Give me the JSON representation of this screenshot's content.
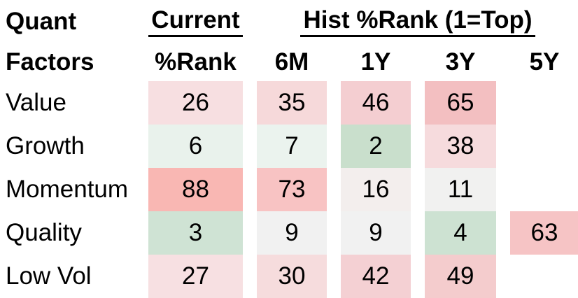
{
  "title": {
    "line1": "Quant",
    "line2": "Factors"
  },
  "header": {
    "group_current": "Current",
    "group_hist": "Hist %Rank (1=Top)",
    "col_current": "%Rank",
    "cols": [
      "6M",
      "1Y",
      "3Y",
      "5Y"
    ]
  },
  "rows": [
    {
      "label": "Value",
      "cells": [
        {
          "v": "26",
          "bg": "#f7dfe1"
        },
        {
          "v": "35",
          "bg": "#f6d9da"
        },
        {
          "v": "46",
          "bg": "#f4ced1"
        },
        {
          "v": "65",
          "bg": "#f3bfc1"
        },
        {
          "v": "",
          "bg": ""
        }
      ]
    },
    {
      "label": "Growth",
      "cells": [
        {
          "v": "6",
          "bg": "#e9f2ec"
        },
        {
          "v": "7",
          "bg": "#ebf3ee"
        },
        {
          "v": "2",
          "bg": "#c9dfcc"
        },
        {
          "v": "38",
          "bg": "#f6dbdd"
        },
        {
          "v": "",
          "bg": ""
        }
      ]
    },
    {
      "label": "Momentum",
      "cells": [
        {
          "v": "88",
          "bg": "#f9b7b3"
        },
        {
          "v": "73",
          "bg": "#f8c3c3"
        },
        {
          "v": "16",
          "bg": "#f3eeed"
        },
        {
          "v": "11",
          "bg": "#f1f1f0"
        },
        {
          "v": "",
          "bg": ""
        }
      ]
    },
    {
      "label": "Quality",
      "cells": [
        {
          "v": "3",
          "bg": "#cfe3d4"
        },
        {
          "v": "9",
          "bg": "#f1f1f1"
        },
        {
          "v": "9",
          "bg": "#f1f1f1"
        },
        {
          "v": "4",
          "bg": "#cde2d2"
        },
        {
          "v": "63",
          "bg": "#f6c4c5"
        }
      ]
    },
    {
      "label": "Low Vol",
      "cells": [
        {
          "v": "27",
          "bg": "#f7e0e2"
        },
        {
          "v": "30",
          "bg": "#f6dcdd"
        },
        {
          "v": "42",
          "bg": "#f4d0d3"
        },
        {
          "v": "49",
          "bg": "#f4cccd"
        },
        {
          "v": "",
          "bg": ""
        }
      ]
    }
  ],
  "chart_data": {
    "type": "heatmap",
    "title": "Quant Factors %Rank",
    "scale_note": "1=Top",
    "row_labels": [
      "Value",
      "Growth",
      "Momentum",
      "Quality",
      "Low Vol"
    ],
    "column_groups": [
      {
        "label": "Current",
        "columns": [
          "%Rank"
        ]
      },
      {
        "label": "Hist %Rank (1=Top)",
        "columns": [
          "6M",
          "1Y",
          "3Y",
          "5Y"
        ]
      }
    ],
    "columns": [
      "Current %Rank",
      "6M",
      "1Y",
      "3Y",
      "5Y"
    ],
    "values": [
      [
        26,
        35,
        46,
        65,
        null
      ],
      [
        6,
        7,
        2,
        38,
        null
      ],
      [
        88,
        73,
        16,
        11,
        null
      ],
      [
        3,
        9,
        9,
        4,
        63
      ],
      [
        27,
        30,
        42,
        49,
        null
      ]
    ],
    "color_low_good": "#c9dfcc",
    "color_mid_neutral": "#f1f1f1",
    "color_high_bad": "#f9b7b3"
  }
}
